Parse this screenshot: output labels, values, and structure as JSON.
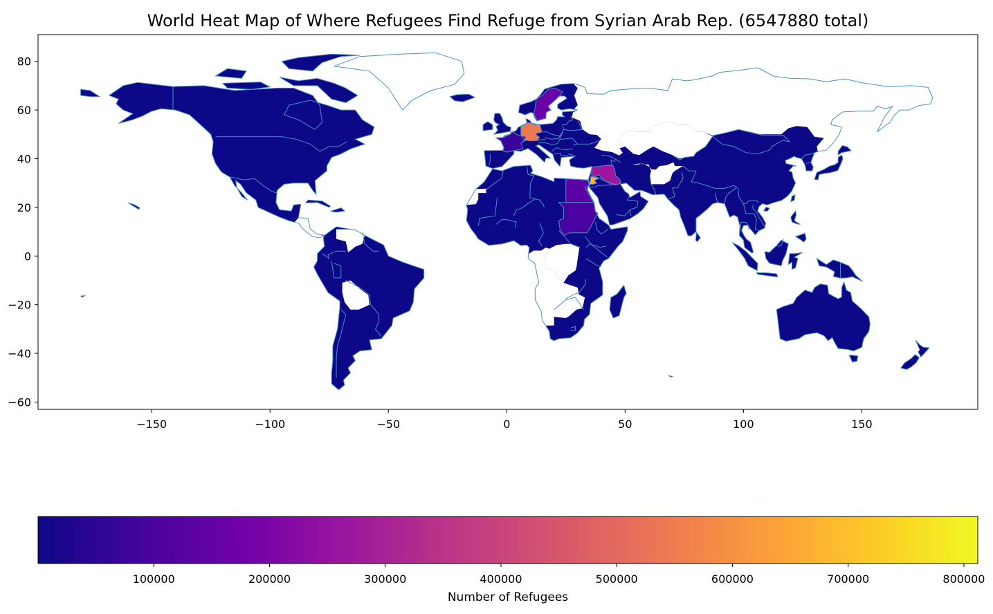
{
  "chart_data": {
    "type": "choropleth",
    "title": "World Heat Map of Where Refugees Find Refuge from Syrian Arab Rep. (6547880 total)",
    "x_ticks": [
      -150,
      -100,
      -50,
      0,
      50,
      100,
      150
    ],
    "x_tick_labels": [
      "−150",
      "−100",
      "−50",
      "0",
      "50",
      "100",
      "150"
    ],
    "y_ticks": [
      80,
      60,
      40,
      20,
      0,
      -20,
      -40,
      -60
    ],
    "y_tick_labels": [
      "80",
      "60",
      "40",
      "20",
      "0",
      "−20",
      "−40",
      "−60"
    ],
    "xlim": [
      -198,
      199
    ],
    "ylim": [
      -63,
      91
    ],
    "colorbar": {
      "label": "Number of Refugees",
      "range": [
        0,
        812000
      ],
      "ticks": [
        100000,
        200000,
        300000,
        400000,
        500000,
        600000,
        700000,
        800000
      ],
      "tick_labels": [
        "100000",
        "200000",
        "300000",
        "400000",
        "500000",
        "600000",
        "700000",
        "800000"
      ],
      "colormap": "plasma",
      "stops": [
        "#0d0887",
        "#46039f",
        "#7201a8",
        "#9c179e",
        "#bd3786",
        "#d8576b",
        "#ed7953",
        "#fb9f3a",
        "#fdca26",
        "#f0f921"
      ]
    },
    "highlighted_regions": [
      {
        "region": "Germany",
        "lon": 10.5,
        "lat": 51,
        "color": "#ed7953"
      },
      {
        "region": "Sweden",
        "lon": 16,
        "lat": 62,
        "color": "#6a00a8"
      },
      {
        "region": "Iraq/Syria",
        "lon": 43,
        "lat": 34,
        "color": "#9c179e"
      },
      {
        "region": "Egypt",
        "lon": 29.5,
        "lat": 26.5,
        "color": "#5c01a6"
      },
      {
        "region": "Sudan",
        "lon": 30,
        "lat": 15,
        "color": "#4903a0"
      },
      {
        "region": "France",
        "lon": 2,
        "lat": 46.5,
        "color": "#3a049a"
      },
      {
        "region": "Jordan",
        "lon": 36.5,
        "lat": 31,
        "color": "#fdb42f"
      }
    ],
    "nodata_regions": [
      "Greenland",
      "Russia",
      "Central Asia",
      "Western Sahara",
      "Central Africa",
      "Southern Africa",
      "Central America"
    ]
  }
}
